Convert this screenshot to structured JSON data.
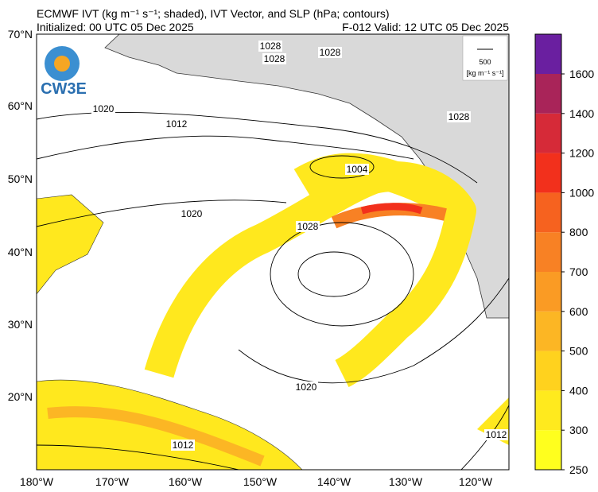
{
  "header": {
    "title": "ECMWF IVT (kg m⁻¹ s⁻¹; shaded), IVT Vector, and SLP (hPa; contours)",
    "initialized": "Initialized: 00 UTC 05 Dec 2025",
    "valid": "F-012  Valid: 12 UTC 05 Dec 2025"
  },
  "logo": "CW3E",
  "map": {
    "lat_labels": [
      "70°N",
      "60°N",
      "50°N",
      "40°N",
      "30°N",
      "20°N"
    ],
    "lon_labels": [
      "180°W",
      "170°W",
      "160°W",
      "150°W",
      "140°W",
      "130°W",
      "120°W"
    ],
    "contour_labels": [
      "1028",
      "1028",
      "1028",
      "1020",
      "1012",
      "1028",
      "1004",
      "1020",
      "1028",
      "1020",
      "1012",
      "1012"
    ]
  },
  "vector_key": {
    "value": "500",
    "units": "[kg m⁻¹ s⁻¹]"
  },
  "colorbar": {
    "levels": [
      250,
      300,
      400,
      500,
      600,
      700,
      800,
      1000,
      1200,
      1400,
      1600
    ],
    "colors": [
      "#ffff1e",
      "#ffea1e",
      "#ffd21e",
      "#fcb624",
      "#fa9b24",
      "#f88124",
      "#f6621f",
      "#f2301c",
      "#d62a38",
      "#a92459",
      "#6a1fa0"
    ]
  }
}
